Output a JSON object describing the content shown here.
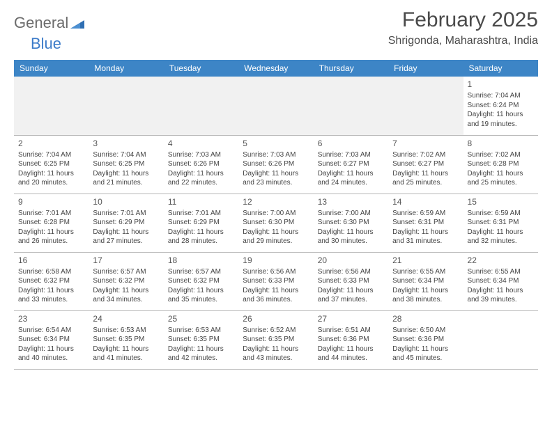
{
  "brand": {
    "text1": "General",
    "text2": "Blue"
  },
  "title": "February 2025",
  "location": "Shrigonda, Maharashtra, India",
  "colors": {
    "header_bg": "#3d85c6",
    "header_fg": "#ffffff",
    "text": "#444444"
  },
  "weekdays": [
    "Sunday",
    "Monday",
    "Tuesday",
    "Wednesday",
    "Thursday",
    "Friday",
    "Saturday"
  ],
  "weeks": [
    [
      null,
      null,
      null,
      null,
      null,
      null,
      {
        "d": "1",
        "sr": "Sunrise: 7:04 AM",
        "ss": "Sunset: 6:24 PM",
        "dl1": "Daylight: 11 hours",
        "dl2": "and 19 minutes."
      }
    ],
    [
      {
        "d": "2",
        "sr": "Sunrise: 7:04 AM",
        "ss": "Sunset: 6:25 PM",
        "dl1": "Daylight: 11 hours",
        "dl2": "and 20 minutes."
      },
      {
        "d": "3",
        "sr": "Sunrise: 7:04 AM",
        "ss": "Sunset: 6:25 PM",
        "dl1": "Daylight: 11 hours",
        "dl2": "and 21 minutes."
      },
      {
        "d": "4",
        "sr": "Sunrise: 7:03 AM",
        "ss": "Sunset: 6:26 PM",
        "dl1": "Daylight: 11 hours",
        "dl2": "and 22 minutes."
      },
      {
        "d": "5",
        "sr": "Sunrise: 7:03 AM",
        "ss": "Sunset: 6:26 PM",
        "dl1": "Daylight: 11 hours",
        "dl2": "and 23 minutes."
      },
      {
        "d": "6",
        "sr": "Sunrise: 7:03 AM",
        "ss": "Sunset: 6:27 PM",
        "dl1": "Daylight: 11 hours",
        "dl2": "and 24 minutes."
      },
      {
        "d": "7",
        "sr": "Sunrise: 7:02 AM",
        "ss": "Sunset: 6:27 PM",
        "dl1": "Daylight: 11 hours",
        "dl2": "and 25 minutes."
      },
      {
        "d": "8",
        "sr": "Sunrise: 7:02 AM",
        "ss": "Sunset: 6:28 PM",
        "dl1": "Daylight: 11 hours",
        "dl2": "and 25 minutes."
      }
    ],
    [
      {
        "d": "9",
        "sr": "Sunrise: 7:01 AM",
        "ss": "Sunset: 6:28 PM",
        "dl1": "Daylight: 11 hours",
        "dl2": "and 26 minutes."
      },
      {
        "d": "10",
        "sr": "Sunrise: 7:01 AM",
        "ss": "Sunset: 6:29 PM",
        "dl1": "Daylight: 11 hours",
        "dl2": "and 27 minutes."
      },
      {
        "d": "11",
        "sr": "Sunrise: 7:01 AM",
        "ss": "Sunset: 6:29 PM",
        "dl1": "Daylight: 11 hours",
        "dl2": "and 28 minutes."
      },
      {
        "d": "12",
        "sr": "Sunrise: 7:00 AM",
        "ss": "Sunset: 6:30 PM",
        "dl1": "Daylight: 11 hours",
        "dl2": "and 29 minutes."
      },
      {
        "d": "13",
        "sr": "Sunrise: 7:00 AM",
        "ss": "Sunset: 6:30 PM",
        "dl1": "Daylight: 11 hours",
        "dl2": "and 30 minutes."
      },
      {
        "d": "14",
        "sr": "Sunrise: 6:59 AM",
        "ss": "Sunset: 6:31 PM",
        "dl1": "Daylight: 11 hours",
        "dl2": "and 31 minutes."
      },
      {
        "d": "15",
        "sr": "Sunrise: 6:59 AM",
        "ss": "Sunset: 6:31 PM",
        "dl1": "Daylight: 11 hours",
        "dl2": "and 32 minutes."
      }
    ],
    [
      {
        "d": "16",
        "sr": "Sunrise: 6:58 AM",
        "ss": "Sunset: 6:32 PM",
        "dl1": "Daylight: 11 hours",
        "dl2": "and 33 minutes."
      },
      {
        "d": "17",
        "sr": "Sunrise: 6:57 AM",
        "ss": "Sunset: 6:32 PM",
        "dl1": "Daylight: 11 hours",
        "dl2": "and 34 minutes."
      },
      {
        "d": "18",
        "sr": "Sunrise: 6:57 AM",
        "ss": "Sunset: 6:32 PM",
        "dl1": "Daylight: 11 hours",
        "dl2": "and 35 minutes."
      },
      {
        "d": "19",
        "sr": "Sunrise: 6:56 AM",
        "ss": "Sunset: 6:33 PM",
        "dl1": "Daylight: 11 hours",
        "dl2": "and 36 minutes."
      },
      {
        "d": "20",
        "sr": "Sunrise: 6:56 AM",
        "ss": "Sunset: 6:33 PM",
        "dl1": "Daylight: 11 hours",
        "dl2": "and 37 minutes."
      },
      {
        "d": "21",
        "sr": "Sunrise: 6:55 AM",
        "ss": "Sunset: 6:34 PM",
        "dl1": "Daylight: 11 hours",
        "dl2": "and 38 minutes."
      },
      {
        "d": "22",
        "sr": "Sunrise: 6:55 AM",
        "ss": "Sunset: 6:34 PM",
        "dl1": "Daylight: 11 hours",
        "dl2": "and 39 minutes."
      }
    ],
    [
      {
        "d": "23",
        "sr": "Sunrise: 6:54 AM",
        "ss": "Sunset: 6:34 PM",
        "dl1": "Daylight: 11 hours",
        "dl2": "and 40 minutes."
      },
      {
        "d": "24",
        "sr": "Sunrise: 6:53 AM",
        "ss": "Sunset: 6:35 PM",
        "dl1": "Daylight: 11 hours",
        "dl2": "and 41 minutes."
      },
      {
        "d": "25",
        "sr": "Sunrise: 6:53 AM",
        "ss": "Sunset: 6:35 PM",
        "dl1": "Daylight: 11 hours",
        "dl2": "and 42 minutes."
      },
      {
        "d": "26",
        "sr": "Sunrise: 6:52 AM",
        "ss": "Sunset: 6:35 PM",
        "dl1": "Daylight: 11 hours",
        "dl2": "and 43 minutes."
      },
      {
        "d": "27",
        "sr": "Sunrise: 6:51 AM",
        "ss": "Sunset: 6:36 PM",
        "dl1": "Daylight: 11 hours",
        "dl2": "and 44 minutes."
      },
      {
        "d": "28",
        "sr": "Sunrise: 6:50 AM",
        "ss": "Sunset: 6:36 PM",
        "dl1": "Daylight: 11 hours",
        "dl2": "and 45 minutes."
      },
      null
    ]
  ]
}
